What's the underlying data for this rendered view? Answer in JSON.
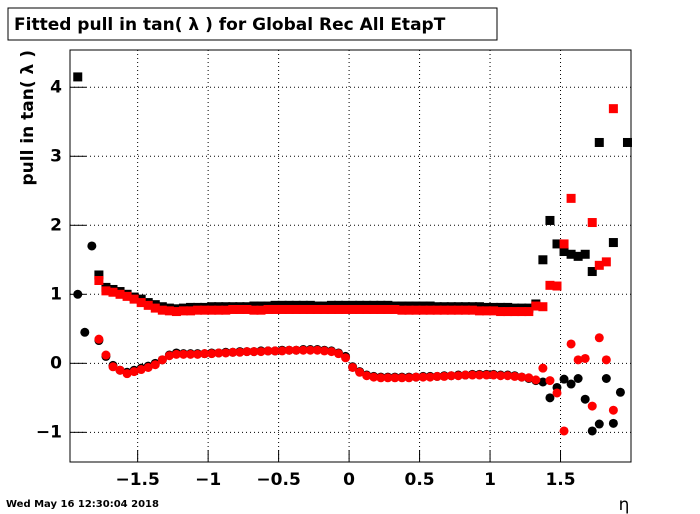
{
  "chart_data": {
    "type": "scatter",
    "title": "Fitted pull in tan( λ )  for Global Rec All EtapT",
    "y_label": "pull in tan( λ )",
    "x_label": "η",
    "timestamp": "Wed May 16 12:30:04 2018",
    "x": [
      -1.925,
      -1.875,
      -1.825,
      -1.775,
      -1.725,
      -1.675,
      -1.625,
      -1.575,
      -1.525,
      -1.475,
      -1.425,
      -1.375,
      -1.325,
      -1.275,
      -1.225,
      -1.175,
      -1.125,
      -1.075,
      -1.025,
      -0.975,
      -0.925,
      -0.875,
      -0.825,
      -0.775,
      -0.725,
      -0.675,
      -0.625,
      -0.575,
      -0.525,
      -0.475,
      -0.425,
      -0.375,
      -0.325,
      -0.275,
      -0.225,
      -0.175,
      -0.125,
      -0.075,
      -0.025,
      0.025,
      0.075,
      0.125,
      0.175,
      0.225,
      0.275,
      0.325,
      0.375,
      0.425,
      0.475,
      0.525,
      0.575,
      0.625,
      0.675,
      0.725,
      0.775,
      0.825,
      0.875,
      0.925,
      0.975,
      1.025,
      1.075,
      1.125,
      1.175,
      1.225,
      1.275,
      1.325,
      1.375,
      1.425,
      1.475,
      1.525,
      1.575,
      1.625,
      1.675,
      1.725,
      1.775,
      1.825,
      1.875,
      1.925,
      1.975
    ],
    "series": [
      {
        "color": "#000000",
        "marker": "square",
        "values": [
          4.15,
          null,
          null,
          1.28,
          1.1,
          1.07,
          1.04,
          1.0,
          0.96,
          0.93,
          0.88,
          0.85,
          0.82,
          0.8,
          0.79,
          0.8,
          0.81,
          0.81,
          0.81,
          0.82,
          0.82,
          0.82,
          0.82,
          0.82,
          0.82,
          0.83,
          0.83,
          0.83,
          0.84,
          0.84,
          0.84,
          0.84,
          0.84,
          0.84,
          0.83,
          0.83,
          0.84,
          0.84,
          0.84,
          0.84,
          0.84,
          0.84,
          0.84,
          0.84,
          0.84,
          0.83,
          0.83,
          0.83,
          0.83,
          0.83,
          0.83,
          0.82,
          0.82,
          0.82,
          0.82,
          0.82,
          0.82,
          0.82,
          0.81,
          0.81,
          0.81,
          0.81,
          0.8,
          0.8,
          0.8,
          0.86,
          1.5,
          2.07,
          1.73,
          1.62,
          1.58,
          1.55,
          1.58,
          1.33,
          3.2,
          null,
          1.75,
          null,
          3.2
        ]
      },
      {
        "color": "#ff0000",
        "marker": "square",
        "values": [
          null,
          null,
          null,
          1.2,
          1.05,
          1.03,
          1.0,
          0.97,
          0.93,
          0.88,
          0.84,
          0.8,
          0.77,
          0.76,
          0.75,
          0.76,
          0.76,
          0.77,
          0.77,
          0.77,
          0.77,
          0.77,
          0.78,
          0.78,
          0.78,
          0.77,
          0.77,
          0.78,
          0.78,
          0.78,
          0.78,
          0.78,
          0.78,
          0.78,
          0.78,
          0.78,
          0.78,
          0.78,
          0.78,
          0.78,
          0.78,
          0.78,
          0.78,
          0.78,
          0.78,
          0.78,
          0.77,
          0.77,
          0.77,
          0.77,
          0.77,
          0.77,
          0.77,
          0.77,
          0.77,
          0.77,
          0.77,
          0.76,
          0.76,
          0.76,
          0.75,
          0.75,
          0.75,
          0.75,
          0.75,
          0.83,
          0.82,
          1.13,
          1.12,
          1.73,
          2.39,
          null,
          null,
          2.04,
          1.42,
          1.47,
          3.69,
          null,
          null
        ]
      },
      {
        "color": "#000000",
        "marker": "circle",
        "values": [
          1.0,
          0.45,
          1.7,
          0.33,
          0.1,
          -0.03,
          -0.1,
          -0.13,
          -0.1,
          -0.07,
          -0.04,
          0.0,
          0.05,
          0.12,
          0.15,
          0.14,
          0.14,
          0.14,
          0.14,
          0.15,
          0.15,
          0.16,
          0.16,
          0.17,
          0.17,
          0.17,
          0.18,
          0.18,
          0.18,
          0.19,
          0.19,
          0.19,
          0.2,
          0.2,
          0.2,
          0.19,
          0.18,
          0.15,
          0.1,
          -0.05,
          -0.12,
          -0.17,
          -0.19,
          -0.2,
          -0.2,
          -0.2,
          -0.2,
          -0.2,
          -0.2,
          -0.19,
          -0.19,
          -0.19,
          -0.18,
          -0.18,
          -0.17,
          -0.17,
          -0.16,
          -0.16,
          -0.16,
          -0.16,
          -0.17,
          -0.17,
          -0.18,
          -0.2,
          -0.22,
          -0.25,
          -0.27,
          -0.5,
          -0.35,
          -0.23,
          -0.3,
          -0.22,
          -0.52,
          -0.98,
          -0.88,
          -0.22,
          -0.87,
          -0.42,
          null
        ]
      },
      {
        "color": "#ff0000",
        "marker": "circle",
        "values": [
          null,
          null,
          null,
          0.35,
          0.12,
          -0.05,
          -0.1,
          -0.15,
          -0.12,
          -0.09,
          -0.06,
          -0.02,
          0.05,
          0.11,
          0.13,
          0.13,
          0.13,
          0.13,
          0.14,
          0.14,
          0.15,
          0.15,
          0.16,
          0.16,
          0.17,
          0.17,
          0.17,
          0.18,
          0.18,
          0.18,
          0.19,
          0.19,
          0.19,
          0.19,
          0.19,
          0.18,
          0.17,
          0.14,
          0.08,
          -0.06,
          -0.13,
          -0.18,
          -0.2,
          -0.21,
          -0.21,
          -0.21,
          -0.21,
          -0.21,
          -0.2,
          -0.2,
          -0.2,
          -0.19,
          -0.19,
          -0.18,
          -0.18,
          -0.17,
          -0.17,
          -0.17,
          -0.17,
          -0.17,
          -0.18,
          -0.18,
          -0.19,
          -0.2,
          -0.21,
          -0.24,
          -0.07,
          -0.25,
          -0.43,
          -0.98,
          0.28,
          0.05,
          0.07,
          -0.62,
          0.37,
          0.05,
          -0.68,
          null,
          null
        ]
      }
    ],
    "xlim": [
      -1.98,
      2.0
    ],
    "ylim": [
      -1.43,
      4.54
    ],
    "xticks": [
      {
        "value": -1.5,
        "label": "−1.5"
      },
      {
        "value": -1,
        "label": "−1"
      },
      {
        "value": -0.5,
        "label": "−0.5"
      },
      0,
      0.5,
      1,
      1.5
    ],
    "yticks": [
      {
        "value": -1,
        "label": "−1"
      },
      0,
      1,
      2,
      3,
      4
    ],
    "grid": true
  }
}
